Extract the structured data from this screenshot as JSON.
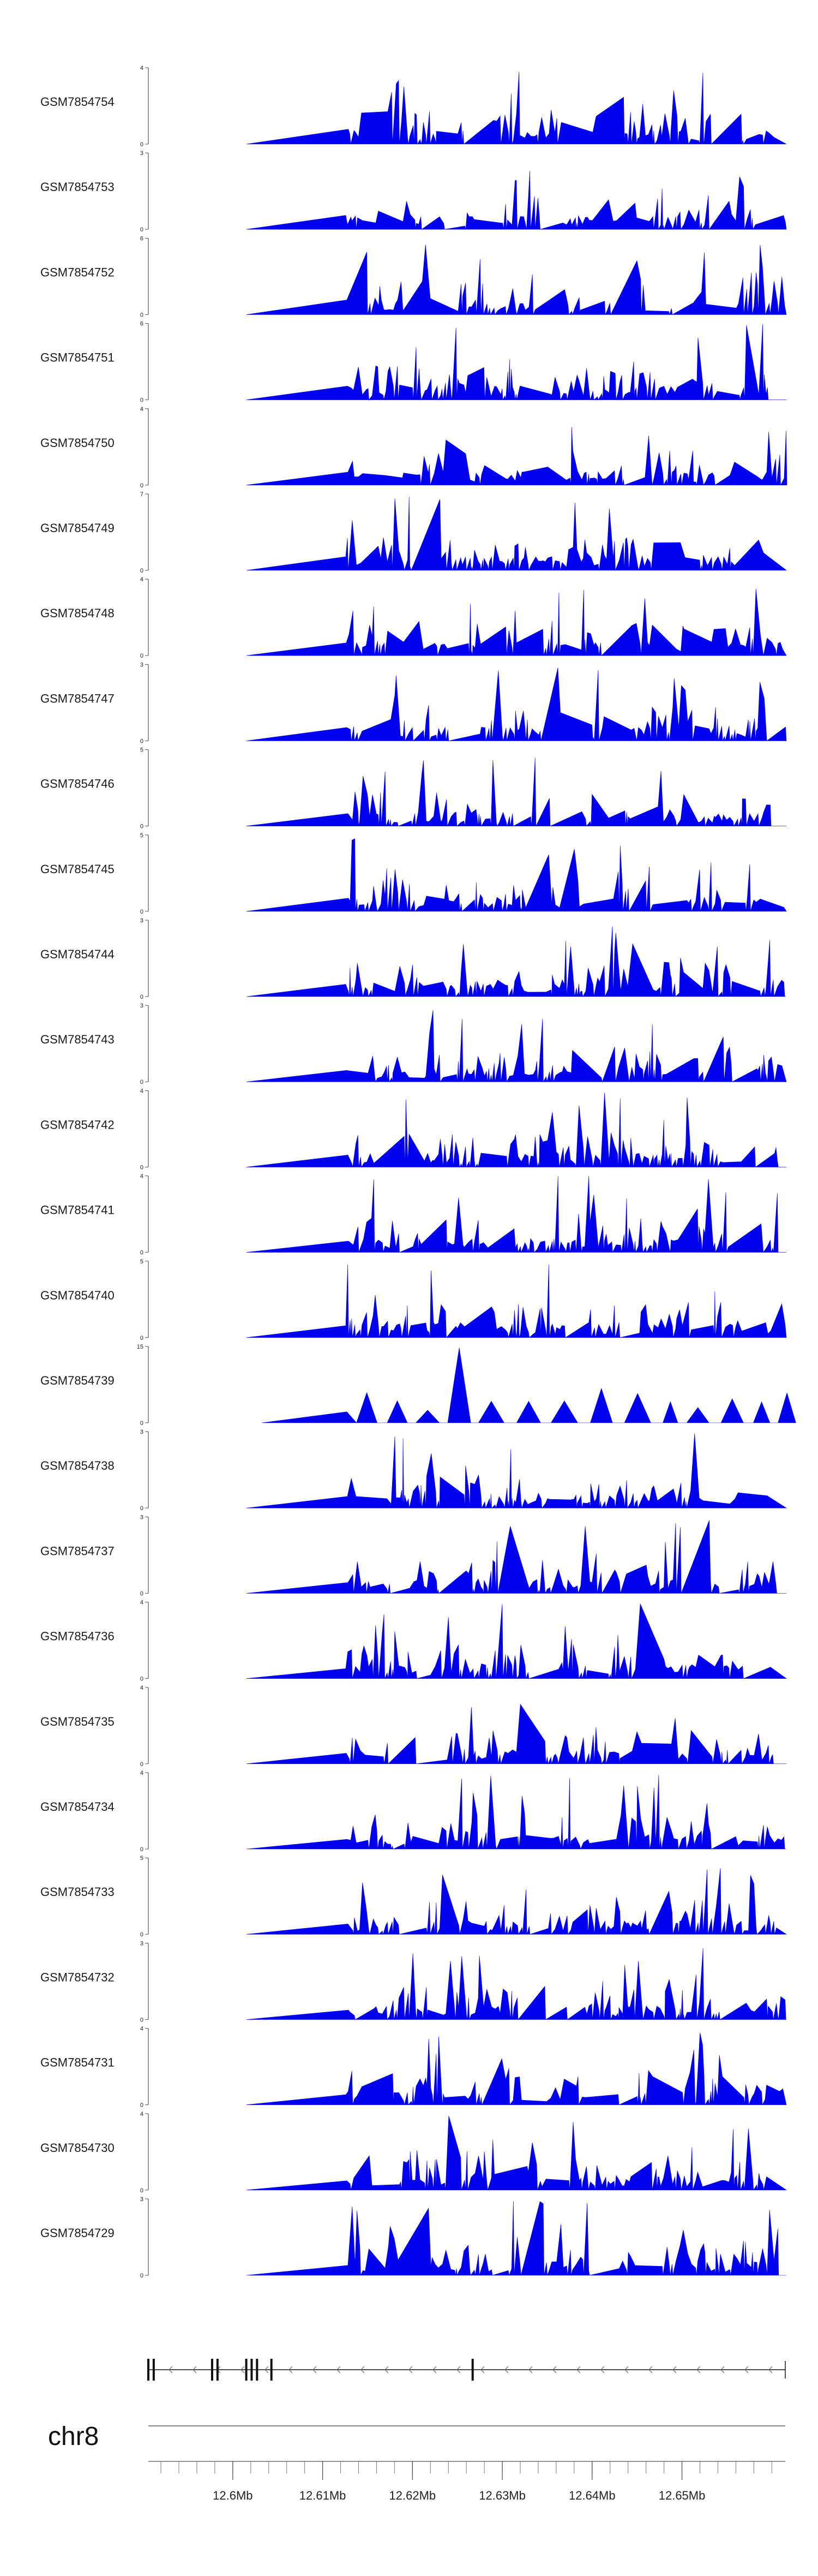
{
  "colors": {
    "signal": "#0000ee",
    "axis": "#555555",
    "gene": "#111111",
    "ideogram_line": "#888888"
  },
  "chart_data": {
    "type": "area",
    "x_unit": "Mb",
    "x_range": [
      12.5906,
      12.6615
    ],
    "tracks": [
      {
        "name": "GSM7854754",
        "y_range": [
          0,
          4
        ],
        "seed": 11
      },
      {
        "name": "GSM7854753",
        "y_range": [
          0,
          3
        ],
        "seed": 12
      },
      {
        "name": "GSM7854752",
        "y_range": [
          0,
          6
        ],
        "seed": 13
      },
      {
        "name": "GSM7854751",
        "y_range": [
          0,
          6
        ],
        "seed": 14
      },
      {
        "name": "GSM7854750",
        "y_range": [
          0,
          4
        ],
        "seed": 15
      },
      {
        "name": "GSM7854749",
        "y_range": [
          0,
          7
        ],
        "seed": 16
      },
      {
        "name": "GSM7854748",
        "y_range": [
          0,
          4
        ],
        "seed": 17
      },
      {
        "name": "GSM7854747",
        "y_range": [
          0,
          3
        ],
        "seed": 18
      },
      {
        "name": "GSM7854746",
        "y_range": [
          0,
          5
        ],
        "seed": 19
      },
      {
        "name": "GSM7854745",
        "y_range": [
          0,
          5
        ],
        "seed": 20
      },
      {
        "name": "GSM7854744",
        "y_range": [
          0,
          3
        ],
        "seed": 21
      },
      {
        "name": "GSM7854743",
        "y_range": [
          0,
          3
        ],
        "seed": 22
      },
      {
        "name": "GSM7854742",
        "y_range": [
          0,
          4
        ],
        "seed": 23
      },
      {
        "name": "GSM7854741",
        "y_range": [
          0,
          4
        ],
        "seed": 24
      },
      {
        "name": "GSM7854740",
        "y_range": [
          0,
          5
        ],
        "seed": 25
      },
      {
        "name": "GSM7854739",
        "y_range": [
          0,
          15
        ],
        "seed": 26
      },
      {
        "name": "GSM7854738",
        "y_range": [
          0,
          3
        ],
        "seed": 27
      },
      {
        "name": "GSM7854737",
        "y_range": [
          0,
          3
        ],
        "seed": 28
      },
      {
        "name": "GSM7854736",
        "y_range": [
          0,
          4
        ],
        "seed": 29
      },
      {
        "name": "GSM7854735",
        "y_range": [
          0,
          4
        ],
        "seed": 30
      },
      {
        "name": "GSM7854734",
        "y_range": [
          0,
          4
        ],
        "seed": 31
      },
      {
        "name": "GSM7854733",
        "y_range": [
          0,
          5
        ],
        "seed": 32
      },
      {
        "name": "GSM7854732",
        "y_range": [
          0,
          3
        ],
        "seed": 33
      },
      {
        "name": "GSM7854731",
        "y_range": [
          0,
          4
        ],
        "seed": 34
      },
      {
        "name": "GSM7854730",
        "y_range": [
          0,
          4
        ],
        "seed": 35
      },
      {
        "name": "GSM7854729",
        "y_range": [
          0,
          3
        ],
        "seed": 36
      }
    ],
    "gene_exons_mb": [
      12.5906,
      12.5912,
      12.5977,
      12.5983,
      12.6015,
      12.6021,
      12.6027,
      12.6043,
      12.6267
    ],
    "chromosome": "chr8",
    "x_ticks": [
      {
        "value": 12.6,
        "label": "12.6Mb"
      },
      {
        "value": 12.61,
        "label": "12.61Mb"
      },
      {
        "value": 12.62,
        "label": "12.62Mb"
      },
      {
        "value": 12.63,
        "label": "12.63Mb"
      },
      {
        "value": 12.64,
        "label": "12.64Mb"
      },
      {
        "value": 12.65,
        "label": "12.65Mb"
      }
    ],
    "minor_tick_step_mb": 0.002
  }
}
